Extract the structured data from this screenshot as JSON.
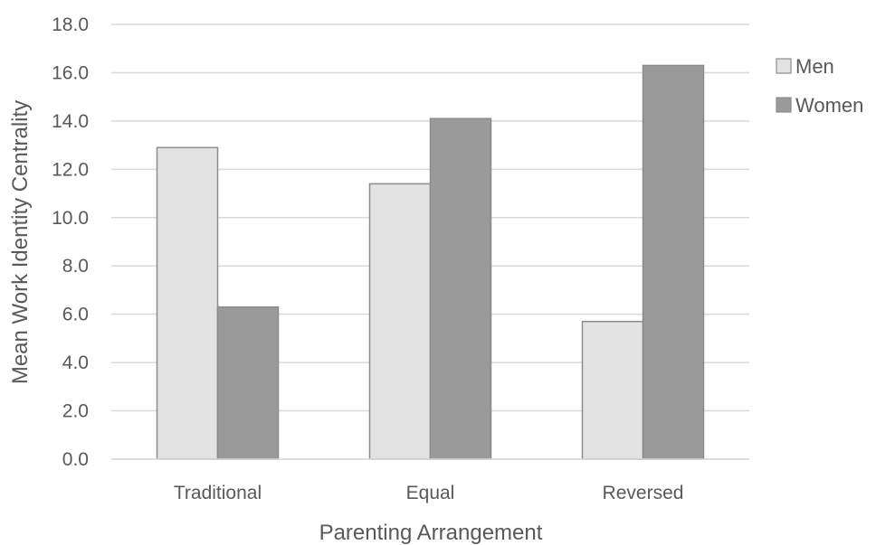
{
  "chart_data": {
    "type": "bar",
    "title": "",
    "xlabel": "Parenting Arrangement",
    "ylabel": "Mean Work Identity Centrality",
    "categories": [
      "Traditional",
      "Equal",
      "Reversed"
    ],
    "series": [
      {
        "name": "Men",
        "values": [
          12.9,
          11.4,
          5.7
        ],
        "color": "#e3e3e3"
      },
      {
        "name": "Women",
        "values": [
          6.3,
          14.1,
          16.3
        ],
        "color": "#9a9a9a"
      }
    ],
    "ylim": [
      0,
      18
    ],
    "yticks": [
      "0.0",
      "2.0",
      "4.0",
      "6.0",
      "8.0",
      "10.0",
      "12.0",
      "14.0",
      "16.0",
      "18.0"
    ],
    "grid": true,
    "legend_position": "right",
    "colors": {
      "gridline": "#d9d9d9",
      "bar_outline": "#8c8c8c",
      "text": "#595959"
    }
  }
}
